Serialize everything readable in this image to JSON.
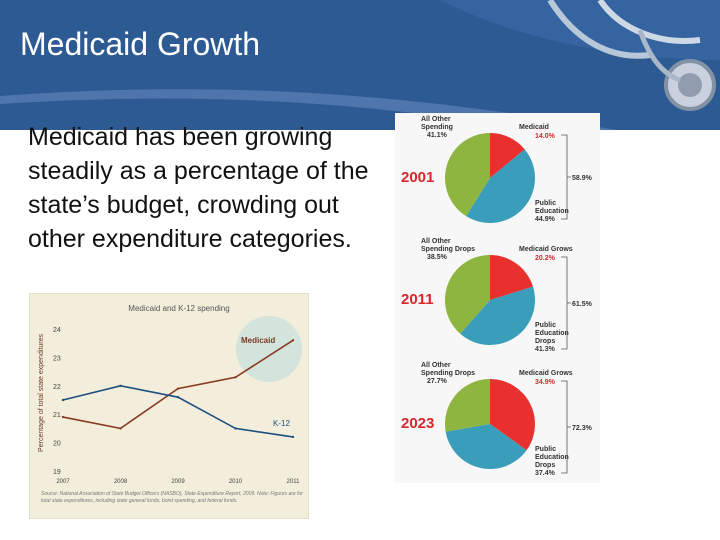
{
  "slide": {
    "title": "Medicaid Growth",
    "body": "Medicaid has been growing steadily as a percentage of the state’s budget, crowding out other expenditure categories."
  },
  "colors": {
    "header_blue": "#2e5a94",
    "medicaid_red": "#e8312f",
    "education_teal": "#3a9dba",
    "other_green": "#8db53f",
    "year_red": "#d8262b",
    "medicaid_line": "#8a3a22",
    "k12_line": "#1d4f80"
  },
  "chart_data": [
    {
      "type": "line",
      "title": "Medicaid and K-12 spending",
      "xlabel": "",
      "ylabel": "Percentage of total state expenditures",
      "x": [
        "2007",
        "2008",
        "2009",
        "2010",
        "2011"
      ],
      "ylim": [
        19,
        24
      ],
      "yticks": [
        "24",
        "23",
        "22",
        "21",
        "20",
        "19"
      ],
      "series": [
        {
          "name": "Medicaid",
          "values": [
            20.9,
            20.5,
            21.9,
            22.3,
            23.6
          ]
        },
        {
          "name": "K-12",
          "values": [
            21.5,
            22.0,
            21.6,
            20.5,
            20.2
          ]
        }
      ],
      "source_note": "Source: National Association of State Budget Officers (NASBO), State Expenditure Report, 2009. Note: Figures are for total state expenditures, including state general funds, bond spending, and federal funds."
    },
    {
      "type": "pie",
      "year": "2001",
      "slices": [
        {
          "label": "Medicaid",
          "value": 14.0,
          "text": "14.0%"
        },
        {
          "label": "Public Education",
          "value": 44.9,
          "text": "44.9%"
        },
        {
          "label": "All Other Spending",
          "value": 41.1,
          "text": "41.1%"
        }
      ],
      "bracket_total": "58.9%"
    },
    {
      "type": "pie",
      "year": "2011",
      "slices": [
        {
          "label": "Medicaid Grows",
          "value": 20.2,
          "text": "20.2%"
        },
        {
          "label": "Public Education Drops",
          "value": 41.3,
          "text": "41.3%"
        },
        {
          "label": "All Other Spending Drops",
          "value": 38.5,
          "text": "38.5%"
        }
      ],
      "bracket_total": "61.5%"
    },
    {
      "type": "pie",
      "year": "2023",
      "slices": [
        {
          "label": "Medicaid Grows",
          "value": 34.9,
          "text": "34.9%"
        },
        {
          "label": "Public Education Drops",
          "value": 37.4,
          "text": "37.4%"
        },
        {
          "label": "All Other Spending Drops",
          "value": 27.7,
          "text": "27.7%"
        }
      ],
      "bracket_total": "72.3%"
    }
  ]
}
